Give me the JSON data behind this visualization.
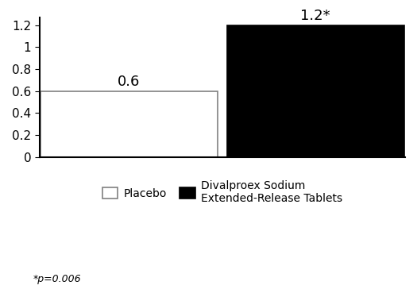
{
  "values": [
    0.6,
    1.2
  ],
  "bar_colors": [
    "#ffffff",
    "#000000"
  ],
  "bar_edgecolors": [
    "#808080",
    "#000000"
  ],
  "bar_labels": [
    "0.6",
    "1.2*"
  ],
  "ylim": [
    0,
    1.27
  ],
  "yticks": [
    0,
    0.2,
    0.4,
    0.6,
    0.8,
    1.0,
    1.2
  ],
  "legend_labels": [
    "Placebo",
    "Divalproex Sodium\nExtended-Release Tablets"
  ],
  "legend_colors": [
    "#ffffff",
    "#000000"
  ],
  "legend_edge_colors": [
    "#808080",
    "#000000"
  ],
  "footnote": "*p=0.006",
  "background_color": "#ffffff",
  "label_fontsize": 13,
  "tick_fontsize": 11,
  "legend_fontsize": 10,
  "footnote_fontsize": 9
}
